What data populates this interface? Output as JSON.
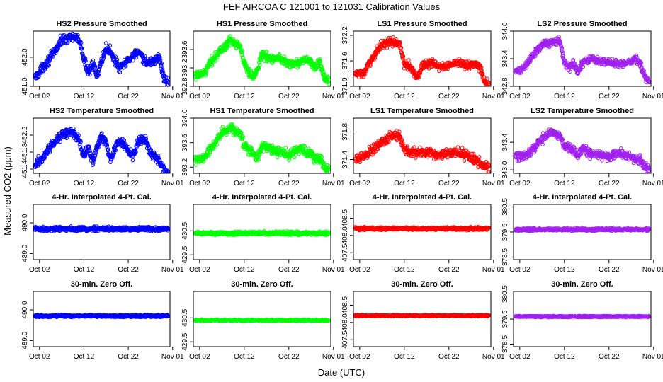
{
  "figure": {
    "title": "FEF   AIRCOA C   121001 to 121031   Calibration Values",
    "ylabel": "Measured CO2 (ppm)",
    "xlabel": "Date (UTC)"
  },
  "x_tick_labels": [
    "Oct 02",
    "Oct 12",
    "Oct 22",
    "Nov 01"
  ],
  "colors": {
    "HS2": "#0000ff",
    "HS1": "#00ff00",
    "LS1": "#ff0000",
    "LS2": "#a020f0",
    "axis": "#000000",
    "background": "#ffffff"
  },
  "chart_data": [
    {
      "type": "scatter",
      "panel": "HS2",
      "row": 1,
      "title": "HS2 Pressure Smoothed",
      "x_range_days": [
        1,
        31
      ],
      "ylim": [
        451.0,
        452.9
      ],
      "yticks": [
        "451.0",
        "452.0"
      ],
      "ytick_values": [
        451.0,
        452.0
      ],
      "trend": [
        [
          1,
          451.3
        ],
        [
          3,
          451.7
        ],
        [
          5,
          452.1
        ],
        [
          7,
          452.6
        ],
        [
          9,
          452.7
        ],
        [
          11,
          452.6
        ],
        [
          12,
          451.9
        ],
        [
          13,
          451.5
        ],
        [
          14,
          451.8
        ],
        [
          15,
          451.3
        ],
        [
          16,
          451.9
        ],
        [
          17,
          452.3
        ],
        [
          18,
          452.2
        ],
        [
          20,
          451.6
        ],
        [
          22,
          451.9
        ],
        [
          24,
          452.2
        ],
        [
          26,
          451.8
        ],
        [
          28,
          451.9
        ],
        [
          29,
          452.0
        ],
        [
          30,
          451.3
        ],
        [
          31,
          451.1
        ]
      ],
      "noise": 0.12
    },
    {
      "type": "scatter",
      "panel": "HS1",
      "row": 1,
      "title": "HS1 Pressure Smoothed",
      "x_range_days": [
        1,
        31
      ],
      "ylim": [
        392.8,
        394.0
      ],
      "yticks": [
        "392.8",
        "393.2",
        "393.6"
      ],
      "ytick_values": [
        392.8,
        393.2,
        393.6
      ],
      "trend": [
        [
          1,
          393.0
        ],
        [
          3,
          393.1
        ],
        [
          5,
          393.4
        ],
        [
          7,
          393.6
        ],
        [
          9,
          393.8
        ],
        [
          11,
          393.7
        ],
        [
          12,
          393.3
        ],
        [
          13,
          393.1
        ],
        [
          14,
          393.0
        ],
        [
          15,
          393.2
        ],
        [
          16,
          393.5
        ],
        [
          18,
          393.4
        ],
        [
          20,
          393.4
        ],
        [
          22,
          393.3
        ],
        [
          24,
          393.3
        ],
        [
          26,
          393.4
        ],
        [
          28,
          393.2
        ],
        [
          29,
          393.3
        ],
        [
          30,
          393.0
        ],
        [
          31,
          392.9
        ]
      ],
      "noise": 0.07
    },
    {
      "type": "scatter",
      "panel": "LS1",
      "row": 1,
      "title": "LS1 Pressure Smoothed",
      "x_range_days": [
        1,
        31
      ],
      "ylim": [
        371.0,
        372.3
      ],
      "yticks": [
        "371.0",
        "371.6",
        "372.2"
      ],
      "ytick_values": [
        371.0,
        371.6,
        372.2
      ],
      "trend": [
        [
          1,
          371.3
        ],
        [
          3,
          371.3
        ],
        [
          5,
          371.7
        ],
        [
          7,
          372.0
        ],
        [
          9,
          372.05
        ],
        [
          11,
          372.0
        ],
        [
          12,
          371.5
        ],
        [
          13,
          371.5
        ],
        [
          14,
          371.35
        ],
        [
          15,
          371.2
        ],
        [
          16,
          371.5
        ],
        [
          18,
          371.55
        ],
        [
          20,
          371.45
        ],
        [
          22,
          371.5
        ],
        [
          24,
          371.55
        ],
        [
          26,
          371.5
        ],
        [
          28,
          371.5
        ],
        [
          29,
          371.45
        ],
        [
          30,
          371.1
        ],
        [
          31,
          371.05
        ]
      ],
      "noise": 0.07
    },
    {
      "type": "scatter",
      "panel": "LS2",
      "row": 1,
      "title": "LS2 Pressure Smoothed",
      "x_range_days": [
        1,
        31
      ],
      "ylim": [
        342.8,
        344.0
      ],
      "yticks": [
        "342.8",
        "343.4",
        "344.0"
      ],
      "ytick_values": [
        342.8,
        343.4,
        344.0
      ],
      "trend": [
        [
          1,
          343.1
        ],
        [
          3,
          343.2
        ],
        [
          5,
          343.5
        ],
        [
          7,
          343.7
        ],
        [
          9,
          343.75
        ],
        [
          11,
          343.8
        ],
        [
          12,
          343.3
        ],
        [
          13,
          343.2
        ],
        [
          14,
          343.3
        ],
        [
          15,
          343.1
        ],
        [
          16,
          343.3
        ],
        [
          18,
          343.4
        ],
        [
          20,
          343.35
        ],
        [
          22,
          343.3
        ],
        [
          24,
          343.3
        ],
        [
          26,
          343.3
        ],
        [
          28,
          343.4
        ],
        [
          29,
          343.3
        ],
        [
          30,
          343.0
        ],
        [
          31,
          342.9
        ]
      ],
      "noise": 0.06
    },
    {
      "type": "scatter",
      "panel": "HS2",
      "row": 2,
      "title": "HS2 Temperature Smoothed",
      "x_range_days": [
        1,
        31
      ],
      "ylim": [
        451.3,
        452.6
      ],
      "yticks": [
        "451.4",
        "451.8",
        "452.2"
      ],
      "ytick_values": [
        451.4,
        451.8,
        452.2
      ],
      "trend": [
        [
          1,
          451.5
        ],
        [
          3,
          451.7
        ],
        [
          5,
          452.0
        ],
        [
          7,
          452.2
        ],
        [
          9,
          452.3
        ],
        [
          11,
          452.1
        ],
        [
          12,
          451.7
        ],
        [
          13,
          451.9
        ],
        [
          14,
          451.6
        ],
        [
          15,
          451.9
        ],
        [
          16,
          452.2
        ],
        [
          17,
          452.0
        ],
        [
          18,
          451.6
        ],
        [
          19,
          451.9
        ],
        [
          20,
          452.1
        ],
        [
          21,
          452.0
        ],
        [
          22,
          451.8
        ],
        [
          23,
          451.7
        ],
        [
          24,
          452.0
        ],
        [
          25,
          452.1
        ],
        [
          26,
          452.1
        ],
        [
          27,
          451.8
        ],
        [
          28,
          451.7
        ],
        [
          29,
          451.6
        ],
        [
          30,
          451.4
        ],
        [
          31,
          451.3
        ]
      ],
      "noise": 0.08
    },
    {
      "type": "scatter",
      "panel": "HS1",
      "row": 2,
      "title": "HS1 Temperature Smoothed",
      "x_range_days": [
        1,
        31
      ],
      "ylim": [
        393.1,
        394.0
      ],
      "yticks": [
        "393.2",
        "393.6",
        "394.0"
      ],
      "ytick_values": [
        393.2,
        393.6,
        394.0
      ],
      "trend": [
        [
          1,
          393.3
        ],
        [
          3,
          393.35
        ],
        [
          5,
          393.55
        ],
        [
          7,
          393.75
        ],
        [
          9,
          393.85
        ],
        [
          11,
          393.75
        ],
        [
          12,
          393.55
        ],
        [
          14,
          393.45
        ],
        [
          15,
          393.35
        ],
        [
          16,
          393.55
        ],
        [
          18,
          393.5
        ],
        [
          20,
          393.45
        ],
        [
          22,
          393.4
        ],
        [
          24,
          393.5
        ],
        [
          26,
          393.45
        ],
        [
          28,
          393.35
        ],
        [
          29,
          393.35
        ],
        [
          30,
          393.2
        ],
        [
          31,
          393.15
        ]
      ],
      "noise": 0.06
    },
    {
      "type": "scatter",
      "panel": "LS1",
      "row": 2,
      "title": "LS1 Temperature Smoothed",
      "x_range_days": [
        1,
        31
      ],
      "ylim": [
        371.2,
        372.0
      ],
      "yticks": [
        "371.4",
        "371.8"
      ],
      "ytick_values": [
        371.4,
        371.8
      ],
      "trend": [
        [
          1,
          371.4
        ],
        [
          3,
          371.45
        ],
        [
          5,
          371.55
        ],
        [
          7,
          371.65
        ],
        [
          9,
          371.75
        ],
        [
          11,
          371.75
        ],
        [
          12,
          371.55
        ],
        [
          14,
          371.5
        ],
        [
          15,
          371.5
        ],
        [
          16,
          371.5
        ],
        [
          18,
          371.5
        ],
        [
          20,
          371.45
        ],
        [
          22,
          371.5
        ],
        [
          24,
          371.5
        ],
        [
          26,
          371.45
        ],
        [
          28,
          371.4
        ],
        [
          29,
          371.35
        ],
        [
          30,
          371.3
        ],
        [
          31,
          371.3
        ]
      ],
      "noise": 0.05
    },
    {
      "type": "scatter",
      "panel": "LS2",
      "row": 2,
      "title": "LS2 Temperature Smoothed",
      "x_range_days": [
        1,
        31
      ],
      "ylim": [
        342.95,
        343.75
      ],
      "yticks": [
        "343.0",
        "343.4"
      ],
      "ytick_values": [
        343.0,
        343.4
      ],
      "trend": [
        [
          1,
          343.2
        ],
        [
          3,
          343.2
        ],
        [
          5,
          343.3
        ],
        [
          7,
          343.45
        ],
        [
          9,
          343.55
        ],
        [
          11,
          343.5
        ],
        [
          12,
          343.35
        ],
        [
          14,
          343.3
        ],
        [
          15,
          343.2
        ],
        [
          16,
          343.3
        ],
        [
          18,
          343.25
        ],
        [
          20,
          343.2
        ],
        [
          22,
          343.2
        ],
        [
          24,
          343.25
        ],
        [
          26,
          343.2
        ],
        [
          28,
          343.15
        ],
        [
          29,
          343.15
        ],
        [
          30,
          343.05
        ],
        [
          31,
          343.0
        ]
      ],
      "noise": 0.05
    },
    {
      "type": "scatter",
      "panel": "HS2",
      "row": 3,
      "title": "4-Hr. Interpolated 4-Pt. Cal.",
      "x_range_days": [
        1,
        31
      ],
      "ylim": [
        488.8,
        490.6
      ],
      "yticks": [
        "489.0",
        "490.0"
      ],
      "ytick_values": [
        489.0,
        490.0
      ],
      "trend": [
        [
          1,
          489.8
        ],
        [
          31,
          489.8
        ]
      ],
      "noise": 0.05
    },
    {
      "type": "scatter",
      "panel": "HS1",
      "row": 3,
      "title": "4-Hr. Interpolated 4-Pt. Cal.",
      "x_range_days": [
        1,
        31
      ],
      "ylim": [
        429.3,
        431.6
      ],
      "yticks": [
        "429.5",
        "430.5"
      ],
      "ytick_values": [
        429.5,
        430.5
      ],
      "trend": [
        [
          1,
          430.4
        ],
        [
          31,
          430.4
        ]
      ],
      "noise": 0.05
    },
    {
      "type": "scatter",
      "panel": "LS1",
      "row": 3,
      "title": "4-Hr. Interpolated 4-Pt. Cal.",
      "x_range_days": [
        1,
        31
      ],
      "ylim": [
        407.3,
        408.9
      ],
      "yticks": [
        "407.5",
        "408.0",
        "408.5"
      ],
      "ytick_values": [
        407.5,
        408.0,
        408.5
      ],
      "trend": [
        [
          1,
          408.2
        ],
        [
          31,
          408.2
        ]
      ],
      "noise": 0.03
    },
    {
      "type": "scatter",
      "panel": "LS2",
      "row": 3,
      "title": "4-Hr. Interpolated 4-Pt. Cal.",
      "x_range_days": [
        1,
        31
      ],
      "ylim": [
        378.4,
        380.6
      ],
      "yticks": [
        "378.5",
        "379.5",
        "380.5"
      ],
      "ytick_values": [
        378.5,
        379.5,
        380.5
      ],
      "trend": [
        [
          1,
          379.6
        ],
        [
          31,
          379.6
        ]
      ],
      "noise": 0.04
    },
    {
      "type": "scatter",
      "panel": "HS2",
      "row": 4,
      "title": "30-min. Zero Off.",
      "x_range_days": [
        1,
        31
      ],
      "ylim": [
        488.8,
        490.6
      ],
      "yticks": [
        "489.0",
        "490.0"
      ],
      "ytick_values": [
        489.0,
        490.0
      ],
      "trend": [
        [
          1,
          489.8
        ],
        [
          31,
          489.8
        ]
      ],
      "noise": 0.025
    },
    {
      "type": "scatter",
      "panel": "HS1",
      "row": 4,
      "title": "30-min. Zero Off.",
      "x_range_days": [
        1,
        31
      ],
      "ylim": [
        429.3,
        431.6
      ],
      "yticks": [
        "429.5",
        "430.5"
      ],
      "ytick_values": [
        429.5,
        430.5
      ],
      "trend": [
        [
          1,
          430.4
        ],
        [
          31,
          430.4
        ]
      ],
      "noise": 0.02
    },
    {
      "type": "scatter",
      "panel": "LS1",
      "row": 4,
      "title": "30-min. Zero Off.",
      "x_range_days": [
        1,
        31
      ],
      "ylim": [
        407.3,
        408.9
      ],
      "yticks": [
        "407.5",
        "408.0",
        "408.5"
      ],
      "ytick_values": [
        407.5,
        408.0,
        408.5
      ],
      "trend": [
        [
          1,
          408.2
        ],
        [
          31,
          408.2
        ]
      ],
      "noise": 0.015
    },
    {
      "type": "scatter",
      "panel": "LS2",
      "row": 4,
      "title": "30-min. Zero Off.",
      "x_range_days": [
        1,
        31
      ],
      "ylim": [
        378.4,
        380.6
      ],
      "yticks": [
        "378.5",
        "379.5",
        "380.5"
      ],
      "ytick_values": [
        378.5,
        379.5,
        380.5
      ],
      "trend": [
        [
          1,
          379.6
        ],
        [
          31,
          379.6
        ]
      ],
      "noise": 0.02
    }
  ]
}
